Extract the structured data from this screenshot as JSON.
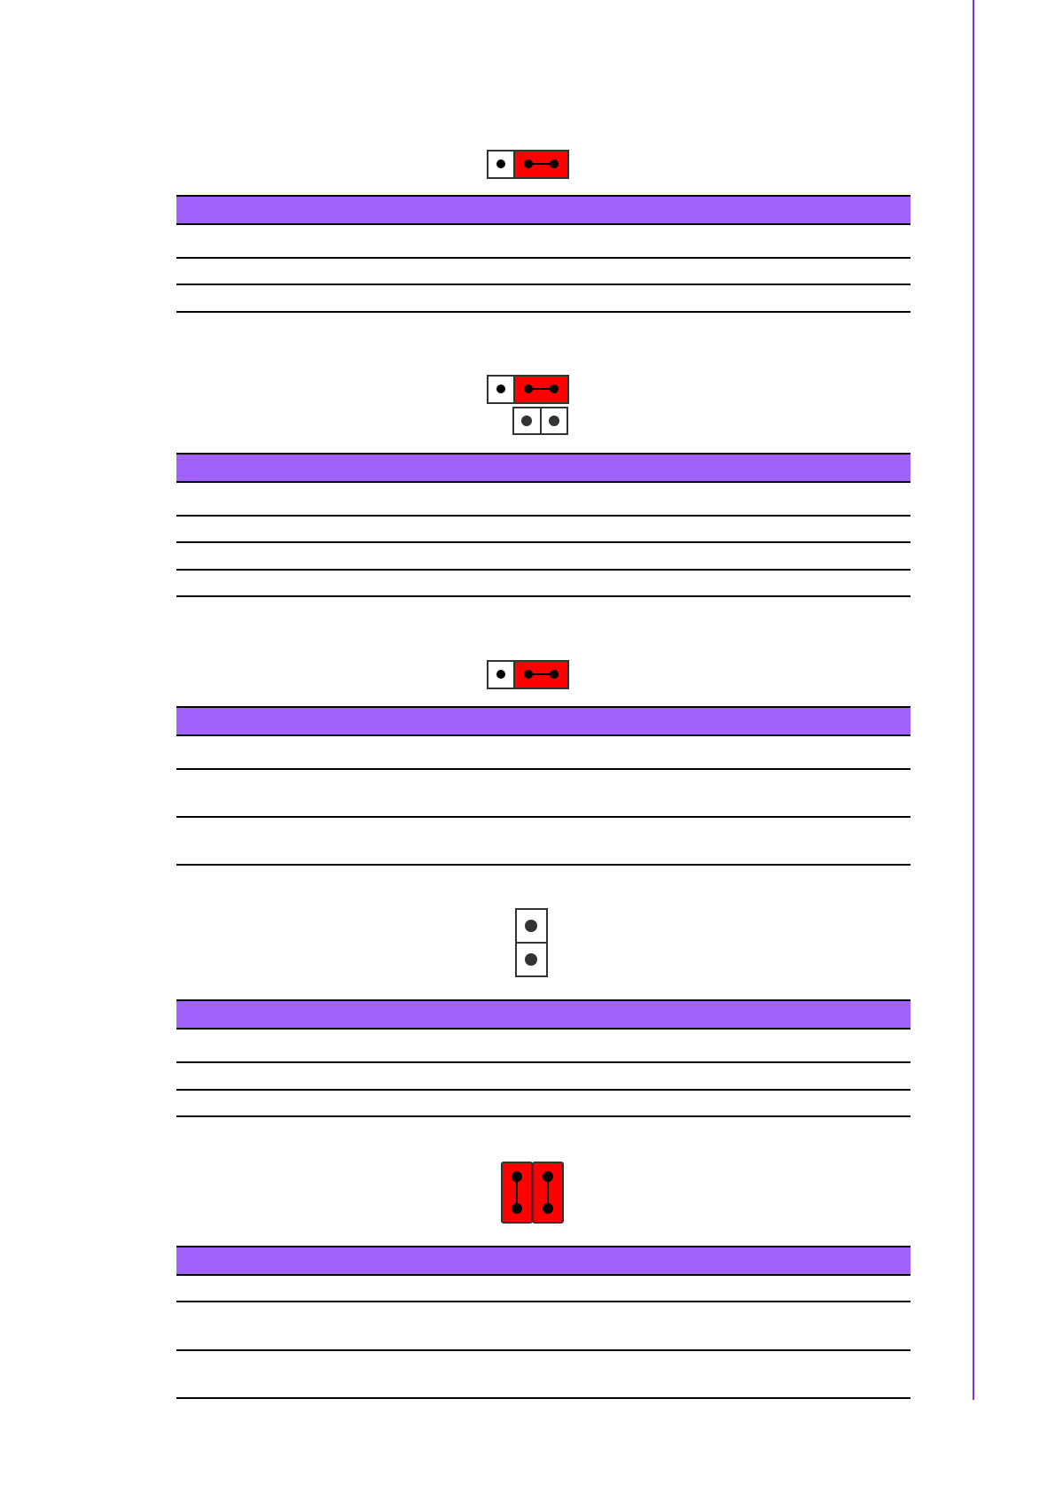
{
  "colors": {
    "table_header": "#a162fb",
    "jumper_cap": "#ff0000",
    "margin_rule": "#8a2be2"
  },
  "sections": [
    {
      "icon": "jumper-3pin-horizontal-icon",
      "rows": 3
    },
    {
      "icon": "jumper-3pin-plus-2pin-icon",
      "rows": 4
    },
    {
      "icon": "jumper-3pin-horizontal-icon",
      "rows": 3
    },
    {
      "icon": "jumper-2pin-vertical-open-icon",
      "rows": 3
    },
    {
      "icon": "jumper-2x2-closed-icon",
      "rows": 3
    }
  ]
}
